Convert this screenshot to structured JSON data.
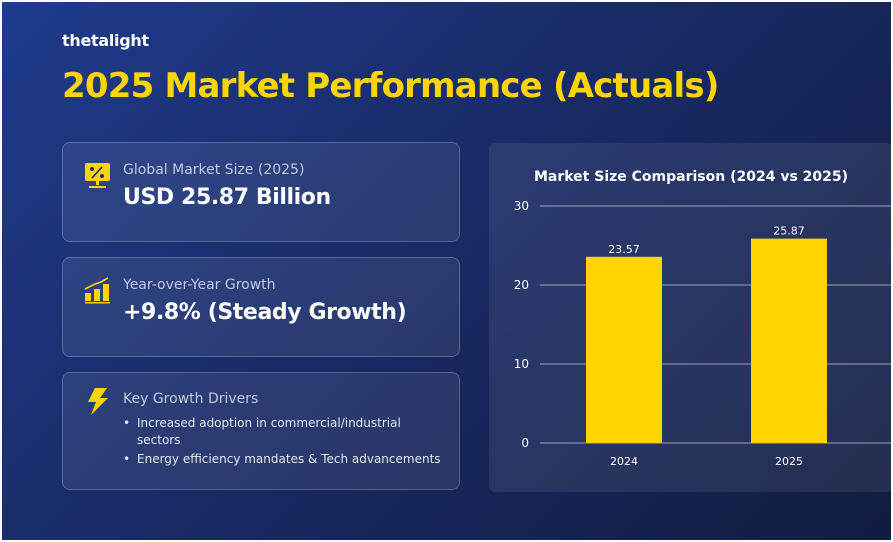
{
  "brand": "thetalight",
  "title": "2025 Market Performance (Actuals)",
  "cards": [
    {
      "icon": "percent-monitor-icon",
      "label": "Global Market Size (2025)",
      "value": "USD 25.87 Billion"
    },
    {
      "icon": "growth-chart-icon",
      "label": "Year-over-Year Growth",
      "value": "+9.8% (Steady Growth)"
    },
    {
      "icon": "lightning-icon",
      "label": "Key Growth Drivers",
      "bullets": [
        "Increased adoption in commercial/industrial sectors",
        "Energy efficiency mandates & Tech advancements"
      ]
    }
  ],
  "colors": {
    "accent": "#ffd500",
    "background": "#1a2d6b"
  },
  "chart_data": {
    "type": "bar",
    "title": "Market Size Comparison (2024 vs 2025)",
    "categories": [
      "2024",
      "2025"
    ],
    "values": [
      23.57,
      25.87
    ],
    "data_labels": [
      "23.57",
      "25.87"
    ],
    "ylim": [
      0,
      30
    ],
    "yticks": [
      "0",
      "10",
      "20",
      "30"
    ],
    "grid": true,
    "bar_color": "#ffd500"
  }
}
